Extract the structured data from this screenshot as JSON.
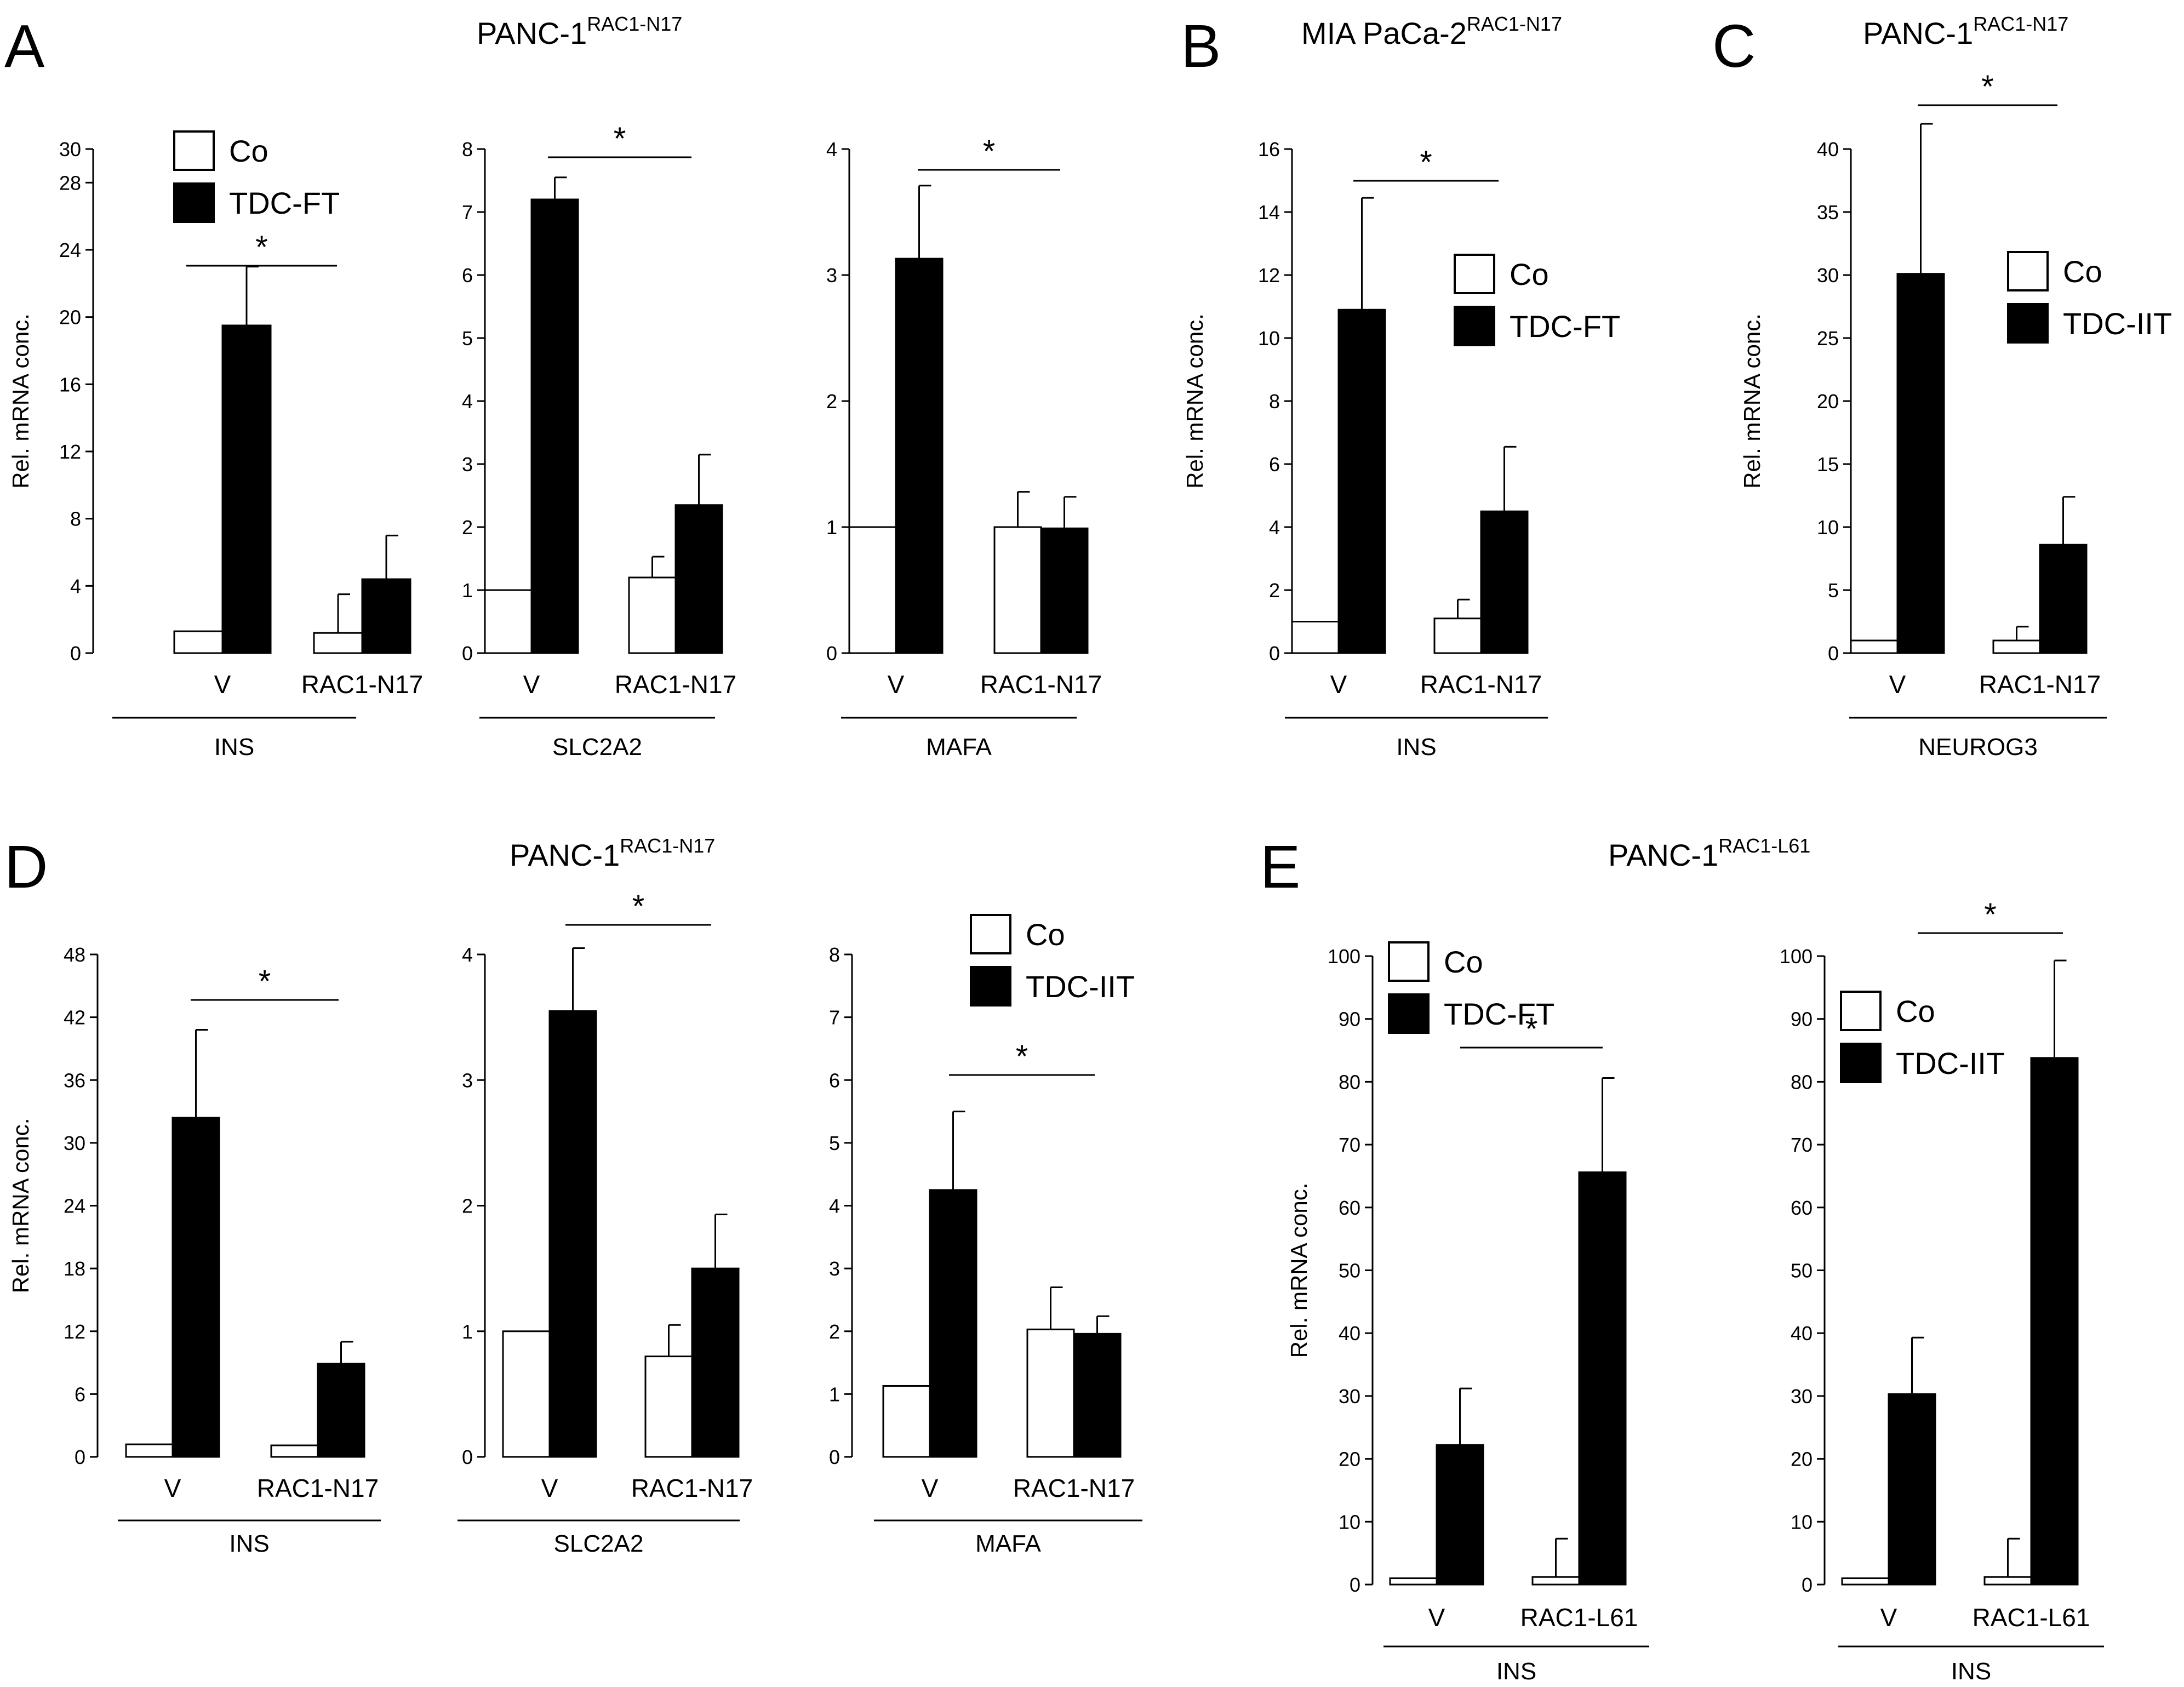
{
  "figure": {
    "panel_letters": [
      "A",
      "B",
      "C",
      "D",
      "E"
    ],
    "cell_lines": {
      "A": {
        "base": "PANC-1",
        "sup": "RAC1-N17"
      },
      "B": {
        "base": "MIA PaCa-2",
        "sup": "RAC1-N17"
      },
      "C": {
        "base": "PANC-1",
        "sup": "RAC1-N17"
      },
      "D": {
        "base": "PANC-1",
        "sup": "RAC1-N17"
      },
      "E": {
        "base": "PANC-1",
        "sup": "RAC1-L61"
      }
    }
  },
  "colors": {
    "co": "#ffffff",
    "treated": "#000000",
    "stroke": "#000000"
  },
  "chart_data": [
    {
      "id": "A1",
      "type": "bar",
      "panel": "A",
      "gene": "INS",
      "ylabel": "Rel. mRNA conc.",
      "ylim": [
        0,
        30
      ],
      "ticks": [
        0,
        4,
        8,
        12,
        16,
        20,
        24,
        28,
        30
      ],
      "categories": [
        "V",
        "RAC1-N17"
      ],
      "series": [
        {
          "name": "Co",
          "values": [
            1.3,
            1.2
          ],
          "errors": [
            0,
            2.3
          ]
        },
        {
          "name": "TDC-FT",
          "values": [
            19.5,
            4.4
          ],
          "errors": [
            3.5,
            2.6
          ]
        }
      ],
      "legend": [
        "Co",
        "TDC-FT"
      ],
      "significance": "*"
    },
    {
      "id": "A2",
      "type": "bar",
      "panel": "A",
      "gene": "SLC2A2",
      "ylabel": "",
      "ylim": [
        0,
        8
      ],
      "ticks": [
        0,
        1,
        2,
        3,
        4,
        5,
        6,
        7,
        8
      ],
      "categories": [
        "V",
        "RAC1-N17"
      ],
      "series": [
        {
          "name": "Co",
          "values": [
            1.0,
            1.2
          ],
          "errors": [
            0,
            0.33
          ]
        },
        {
          "name": "TDC-FT",
          "values": [
            7.2,
            2.35
          ],
          "errors": [
            0.35,
            0.8
          ]
        }
      ],
      "legend": [],
      "significance": "*"
    },
    {
      "id": "A3",
      "type": "bar",
      "panel": "A",
      "gene": "MAFA",
      "ylabel": "",
      "ylim": [
        0,
        4
      ],
      "ticks": [
        0,
        1,
        2,
        3,
        4
      ],
      "categories": [
        "V",
        "RAC1-N17"
      ],
      "series": [
        {
          "name": "Co",
          "values": [
            1.0,
            1.0
          ],
          "errors": [
            0,
            0.28
          ]
        },
        {
          "name": "TDC-FT",
          "values": [
            3.13,
            0.99
          ],
          "errors": [
            0.58,
            0.25
          ]
        }
      ],
      "legend": [],
      "significance": "*"
    },
    {
      "id": "B1",
      "type": "bar",
      "panel": "B",
      "gene": "INS",
      "ylabel": "Rel. mRNA conc.",
      "ylim": [
        0,
        16
      ],
      "ticks": [
        0,
        2,
        4,
        6,
        8,
        10,
        12,
        14,
        16
      ],
      "categories": [
        "V",
        "RAC1-N17"
      ],
      "series": [
        {
          "name": "Co",
          "values": [
            1.0,
            1.1
          ],
          "errors": [
            0,
            0.6
          ]
        },
        {
          "name": "TDC-FT",
          "values": [
            10.9,
            4.5
          ],
          "errors": [
            3.55,
            2.05
          ]
        }
      ],
      "legend": [
        "Co",
        "TDC-FT"
      ],
      "significance": "*"
    },
    {
      "id": "C1",
      "type": "bar",
      "panel": "C",
      "gene": "NEUROG3",
      "ylabel": "Rel. mRNA conc.",
      "ylim": [
        0,
        40
      ],
      "ticks": [
        0,
        5,
        10,
        15,
        20,
        25,
        30,
        35,
        40
      ],
      "categories": [
        "V",
        "RAC1-N17"
      ],
      "series": [
        {
          "name": "Co",
          "values": [
            1.0,
            1.0
          ],
          "errors": [
            0,
            1.1
          ]
        },
        {
          "name": "TDC-IIT",
          "values": [
            30.1,
            8.6
          ],
          "errors": [
            11.9,
            3.8
          ]
        }
      ],
      "legend": [
        "Co",
        "TDC-IIT"
      ],
      "significance": "*"
    },
    {
      "id": "D1",
      "type": "bar",
      "panel": "D",
      "gene": "INS",
      "ylabel": "Rel. mRNA conc.",
      "ylim": [
        0,
        48
      ],
      "ticks": [
        0,
        6,
        12,
        18,
        24,
        30,
        36,
        42,
        48
      ],
      "categories": [
        "V",
        "RAC1-N17"
      ],
      "series": [
        {
          "name": "Co",
          "values": [
            1.2,
            1.1
          ],
          "errors": [
            0,
            0
          ]
        },
        {
          "name": "TDC-IIT",
          "values": [
            32.4,
            8.9
          ],
          "errors": [
            8.4,
            2.1
          ]
        }
      ],
      "legend": [],
      "significance": "*"
    },
    {
      "id": "D2",
      "type": "bar",
      "panel": "D",
      "gene": "SLC2A2",
      "ylabel": "",
      "ylim": [
        0,
        4
      ],
      "ticks": [
        0,
        1,
        2,
        3,
        4
      ],
      "categories": [
        "V",
        "RAC1-N17"
      ],
      "series": [
        {
          "name": "Co",
          "values": [
            1.0,
            0.8
          ],
          "errors": [
            0,
            0.25
          ]
        },
        {
          "name": "TDC-IIT",
          "values": [
            3.55,
            1.5
          ],
          "errors": [
            0.5,
            0.43
          ]
        }
      ],
      "legend": [],
      "significance": "*"
    },
    {
      "id": "D3",
      "type": "bar",
      "panel": "D",
      "gene": "MAFA",
      "ylabel": "",
      "ylim": [
        0,
        8
      ],
      "ticks": [
        0,
        1,
        2,
        3,
        4,
        5,
        6,
        7,
        8
      ],
      "categories": [
        "V",
        "RAC1-N17"
      ],
      "series": [
        {
          "name": "Co",
          "values": [
            1.13,
            2.03
          ],
          "errors": [
            0,
            0.67
          ]
        },
        {
          "name": "TDC-IIT",
          "values": [
            4.25,
            1.96
          ],
          "errors": [
            1.25,
            0.28
          ]
        }
      ],
      "legend": [
        "Co",
        "TDC-IIT"
      ],
      "significance": "*"
    },
    {
      "id": "E1",
      "type": "bar",
      "panel": "E",
      "gene": "INS",
      "ylabel": "Rel. mRNA conc.",
      "ylim": [
        0,
        100
      ],
      "ticks": [
        0,
        10,
        20,
        30,
        40,
        50,
        60,
        70,
        80,
        90,
        100
      ],
      "categories": [
        "V",
        "RAC1-L61"
      ],
      "series": [
        {
          "name": "Co",
          "values": [
            1.0,
            1.2
          ],
          "errors": [
            0,
            6.1
          ]
        },
        {
          "name": "TDC-FT",
          "values": [
            22.2,
            65.6
          ],
          "errors": [
            9.0,
            15.0
          ]
        }
      ],
      "legend": [
        "Co",
        "TDC-FT"
      ],
      "significance": "*"
    },
    {
      "id": "E2",
      "type": "bar",
      "panel": "E",
      "gene": "INS",
      "ylabel": "",
      "ylim": [
        0,
        100
      ],
      "ticks": [
        0,
        10,
        20,
        30,
        40,
        50,
        60,
        70,
        80,
        90,
        100
      ],
      "categories": [
        "V",
        "RAC1-L61"
      ],
      "series": [
        {
          "name": "Co",
          "values": [
            1.0,
            1.2
          ],
          "errors": [
            0,
            6.1
          ]
        },
        {
          "name": "TDC-IIT",
          "values": [
            30.3,
            83.8
          ],
          "errors": [
            9.0,
            15.5
          ]
        }
      ],
      "legend": [
        "Co",
        "TDC-IIT"
      ],
      "significance": "*"
    }
  ]
}
